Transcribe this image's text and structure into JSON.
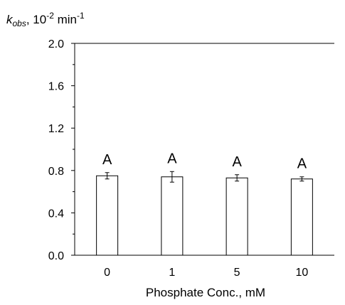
{
  "chart_data": {
    "type": "bar",
    "ylabel": {
      "symbol": "k",
      "subscript": "obs",
      "sep": ", 10",
      "exp1": "-2",
      "unit": " min",
      "exp2": "-1"
    },
    "xlabel": "Phosphate Conc., mM",
    "categories": [
      "0",
      "1",
      "5",
      "10"
    ],
    "values": [
      0.75,
      0.74,
      0.73,
      0.72
    ],
    "errors": [
      0.03,
      0.05,
      0.03,
      0.02
    ],
    "significance_labels": [
      "A",
      "A",
      "A",
      "A"
    ],
    "ylim": [
      0,
      2.0
    ],
    "yticks": [
      "0.0",
      "0.4",
      "0.8",
      "1.2",
      "1.6",
      "2.0"
    ],
    "ytick_values": [
      0,
      0.4,
      0.8,
      1.2,
      1.6,
      2.0
    ],
    "grid": false,
    "legend": null,
    "bar_fill": "#ffffff",
    "bar_stroke": "#000000"
  }
}
